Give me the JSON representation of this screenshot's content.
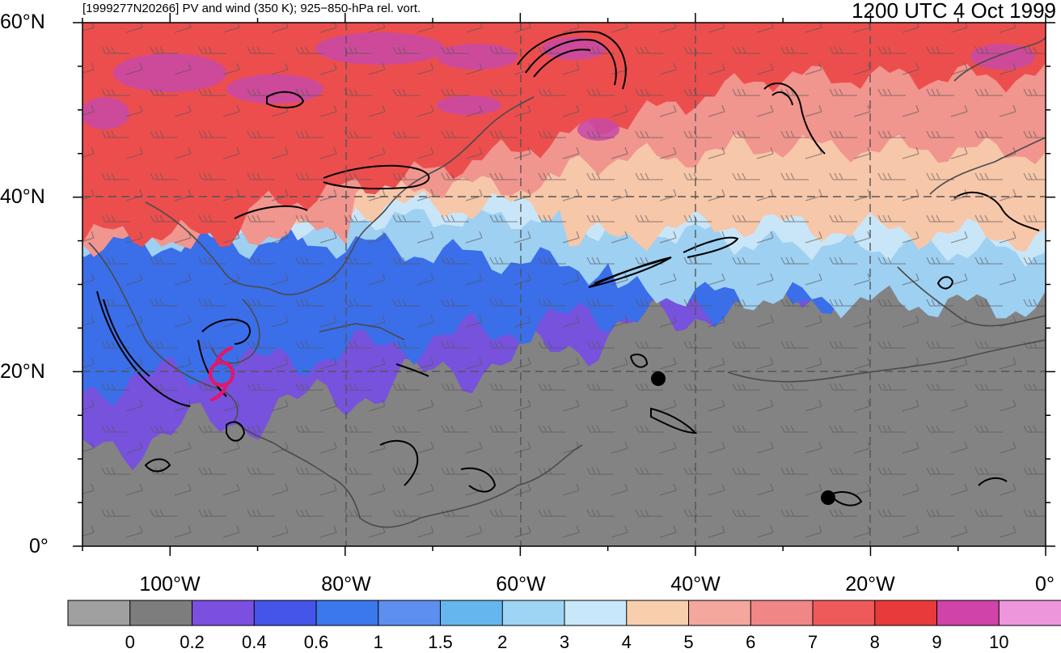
{
  "header": {
    "left_title": "[1999277N20266] PV and wind (350 K); 925−850-hPa rel. vort.",
    "right_title": "1200 UTC 4 Oct 1999"
  },
  "axes": {
    "lat_labels": [
      "60°N",
      "40°N",
      "20°N",
      "0°"
    ],
    "lon_labels": [
      "100°W",
      "80°W",
      "60°W",
      "40°W",
      "20°W",
      "0°"
    ]
  },
  "colorbar": {
    "tick_labels": [
      "0",
      "0.2",
      "0.4",
      "0.6",
      "1",
      "1.5",
      "2",
      "3",
      "4",
      "5",
      "6",
      "7",
      "8",
      "9",
      "10"
    ],
    "colors": [
      "#a0a0a0",
      "#7d7d7d",
      "#7b4fe0",
      "#4455e8",
      "#3a78ec",
      "#5c8ff0",
      "#66b6ee",
      "#9ed4f4",
      "#c8e8fa",
      "#f8cfae",
      "#f4a79d",
      "#f18686",
      "#ee5a5a",
      "#e83a3a",
      "#d043a8",
      "#ee96dc"
    ]
  },
  "map_colors": {
    "grey": "#838383",
    "purple": "#7752dc",
    "blue": "#3b6ee9",
    "light_blue": "#9ed0f2",
    "pale_blue": "#c9e6f8",
    "peach": "#f7c7aa",
    "salmon": "#f1958f",
    "red": "#ec4e4e",
    "magenta": "#c84aa8",
    "storm_symbol": "#e0186e"
  },
  "map_extent": {
    "lon_min": -110,
    "lon_max": 0,
    "lat_min": 0,
    "lat_max": 60
  }
}
